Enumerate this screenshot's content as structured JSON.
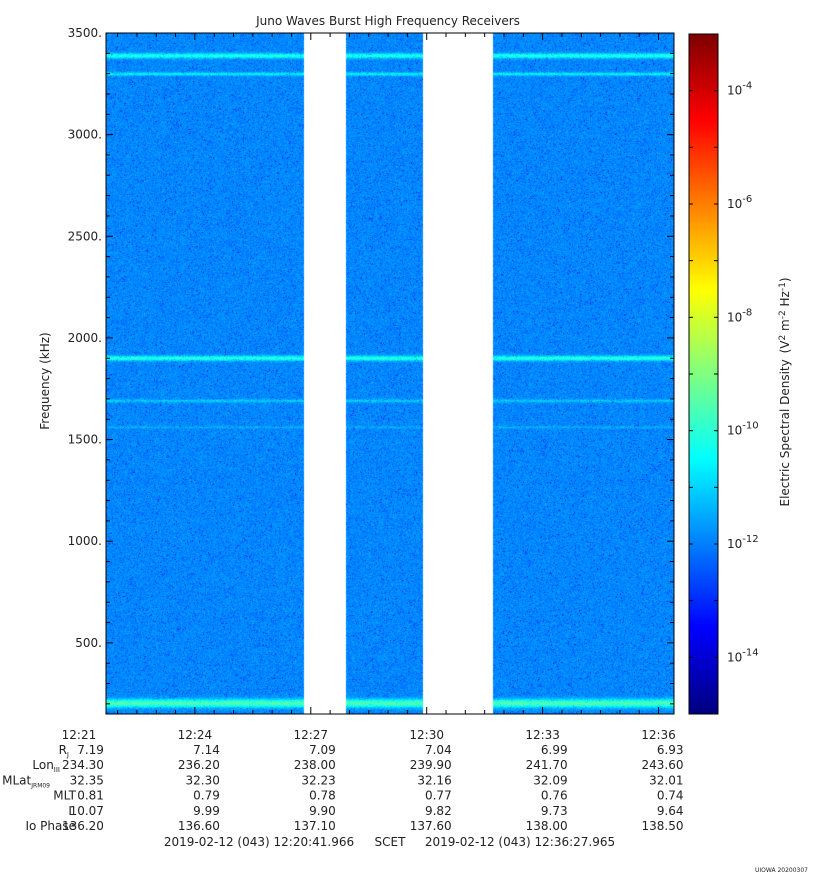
{
  "chart_data": {
    "type": "heatmap",
    "title": "Juno Waves Burst High Frequency Receivers",
    "ylabel": "Frequency (kHz)",
    "ylim": [
      150,
      3500
    ],
    "y_ticks": [
      500,
      1000,
      1500,
      2000,
      2500,
      3000,
      3500
    ],
    "y_tick_labels": [
      "500.",
      "1000.",
      "1500.",
      "2000.",
      "2500.",
      "3000.",
      "3500."
    ],
    "x_range_minutes": [
      741.7,
      756.4
    ],
    "x_ticks": [
      {
        "label": "12:21",
        "minutes": 741
      },
      {
        "label": "12:24",
        "minutes": 744
      },
      {
        "label": "12:27",
        "minutes": 747
      },
      {
        "label": "12:30",
        "minutes": 750
      },
      {
        "label": "12:33",
        "minutes": 753
      },
      {
        "label": "12:36",
        "minutes": 756
      }
    ],
    "data_gaps_minutes": [
      [
        746.8,
        747.9
      ],
      [
        749.9,
        751.7
      ]
    ],
    "background_log10_psd": -11.9,
    "emission_lines": [
      {
        "freq_khz": 200,
        "log10_psd": -9.5,
        "width_khz": 20
      },
      {
        "freq_khz": 1900,
        "log10_psd": -10.0,
        "width_khz": 12
      },
      {
        "freq_khz": 3390,
        "log10_psd": -10.1,
        "width_khz": 12
      },
      {
        "freq_khz": 3300,
        "log10_psd": -10.6,
        "width_khz": 8
      },
      {
        "freq_khz": 1690,
        "log10_psd": -11.1,
        "width_khz": 8
      },
      {
        "freq_khz": 1560,
        "log10_psd": -11.4,
        "width_khz": 6
      }
    ],
    "colorbar": {
      "label": "Electric Spectral Density (V² m⁻² Hz⁻¹)",
      "label_text": "Electric Spectral Density",
      "label_unit_text": "(V",
      "log_range": [
        -15,
        -3
      ],
      "tick_exponents": [
        -14,
        -12,
        -10,
        -8,
        -6,
        -4
      ],
      "tick_base": "10"
    },
    "ephemeris": {
      "row_labels": [
        {
          "main": "R",
          "sub": "J"
        },
        {
          "main": "Lon",
          "sub": "III"
        },
        {
          "main": "MLat",
          "sub": "JRM09"
        },
        {
          "main": "MLT",
          "sub": ""
        },
        {
          "main": "L",
          "sub": ""
        },
        {
          "main": "Io Phase",
          "sub": ""
        }
      ],
      "rows": [
        [
          "7.19",
          "7.14",
          "7.09",
          "7.04",
          "6.99",
          "6.93"
        ],
        [
          "234.30",
          "236.20",
          "238.00",
          "239.90",
          "241.70",
          "243.60"
        ],
        [
          "32.35",
          "32.30",
          "32.23",
          "32.16",
          "32.09",
          "32.01"
        ],
        [
          "0.81",
          "0.79",
          "0.78",
          "0.77",
          "0.76",
          "0.74"
        ],
        [
          "10.07",
          "9.99",
          "9.90",
          "9.82",
          "9.73",
          "9.64"
        ],
        [
          "136.20",
          "136.60",
          "137.10",
          "137.60",
          "138.00",
          "138.50"
        ]
      ]
    },
    "time_span": {
      "start": "2019-02-12 (043) 12:20:41.966",
      "label": "SCET",
      "end": "2019-02-12 (043) 12:36:27.965"
    },
    "footer_stamp": "UIOWA 20200307"
  }
}
